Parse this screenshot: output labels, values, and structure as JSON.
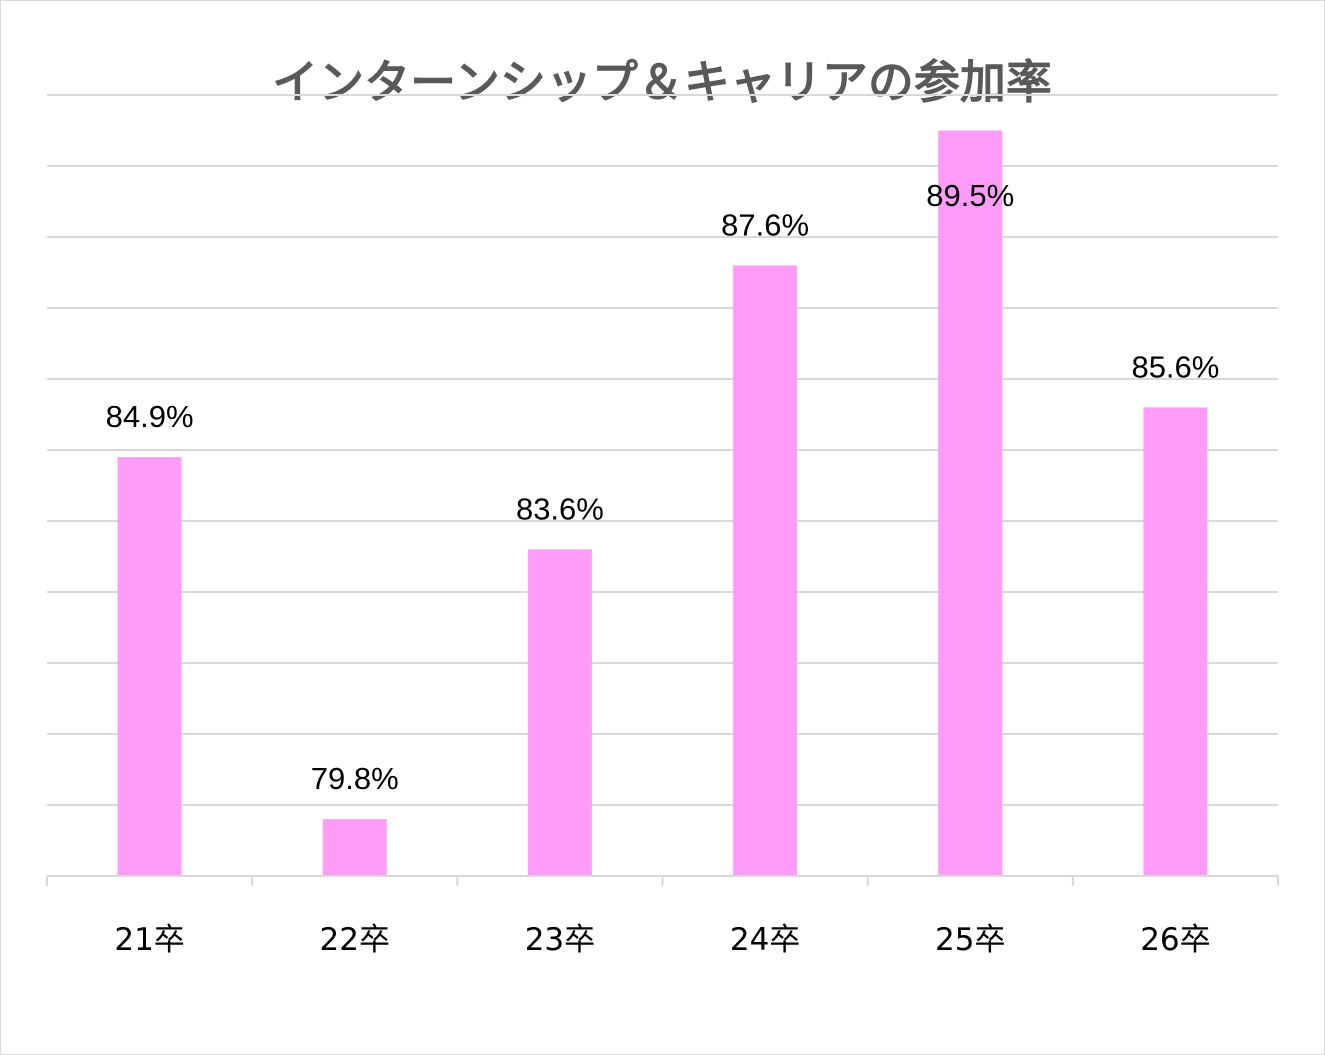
{
  "chart_data": {
    "type": "bar",
    "title": "インターンシップ＆キャリアの参加率",
    "categories": [
      "21卒",
      "22卒",
      "23卒",
      "24卒",
      "25卒",
      "26卒"
    ],
    "values": [
      84.9,
      79.8,
      83.6,
      87.6,
      89.5,
      85.6
    ],
    "value_labels": [
      "84.9%",
      "79.8%",
      "83.6%",
      "87.6%",
      "89.5%",
      "85.6%"
    ],
    "xlabel": "",
    "ylabel": "",
    "ylim": [
      79,
      90.5
    ],
    "gridlines": true,
    "y_axis_labels": false,
    "legend": "none",
    "bar_color": "#FF9CF7",
    "grid_color": "#D9D9D9"
  }
}
